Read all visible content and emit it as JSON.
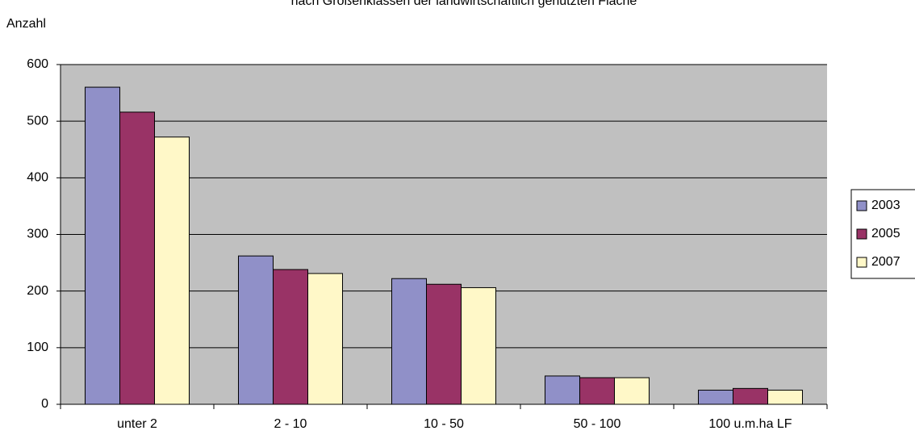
{
  "chart_data": {
    "type": "bar",
    "title": "nach Größenklassen der landwirtschaftlich genutzten Fläche",
    "y_label": "Anzahl",
    "categories": [
      "unter 2",
      "2 - 10",
      "10 - 50",
      "50 - 100",
      "100 u.m.ha LF"
    ],
    "series": [
      {
        "name": "2003",
        "color": "#9090c8",
        "values": [
          560,
          262,
          222,
          50,
          25
        ]
      },
      {
        "name": "2005",
        "color": "#993366",
        "values": [
          516,
          238,
          212,
          47,
          28
        ]
      },
      {
        "name": "2007",
        "color": "#fff8c8",
        "values": [
          472,
          231,
          206,
          47,
          25
        ]
      }
    ],
    "ylim": [
      0,
      600
    ],
    "yticks": [
      0,
      100,
      200,
      300,
      400,
      500,
      600
    ],
    "grid": true,
    "legend": "right"
  }
}
